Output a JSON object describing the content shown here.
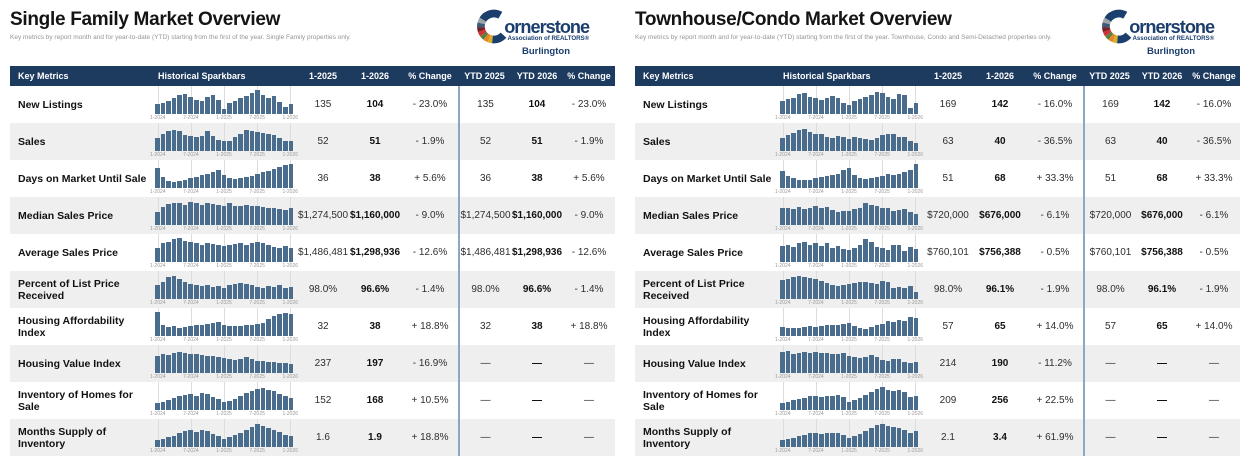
{
  "logo": {
    "name": "Cornerstone",
    "text_after_c": "ornerstone",
    "tagline": "Association of REALTORS®",
    "region": "Burlington"
  },
  "colors": {
    "header_bg": "#1d3a5f",
    "row_stripe": "#efefef",
    "bar_blue": "#4a6d8e",
    "divider_blue": "#8ba7c4",
    "logo_navy": "#1c3e6d"
  },
  "spark_axis": [
    "1-2024",
    "7-2024",
    "1-2025",
    "7-2025",
    "1-2026"
  ],
  "columns": [
    "Key Metrics",
    "Historical Sparkbars",
    "1-2025",
    "1-2026",
    "% Change",
    "YTD 2025",
    "YTD 2026",
    "% Change"
  ],
  "panels": [
    {
      "title": "Single Family Market Overview",
      "subtitle": "Key metrics by report month and for year-to-date (YTD) starting from the first of the year. Single Family properties only.",
      "rows": [
        {
          "metric": "New Listings",
          "m2025": "135",
          "m2026": "104",
          "mchange": "- 23.0%",
          "ytd2025": "135",
          "ytd2026": "104",
          "ytdchange": "- 23.0%",
          "spark": [
            40,
            46,
            55,
            65,
            78,
            85,
            70,
            60,
            55,
            72,
            80,
            58,
            20,
            45,
            55,
            65,
            75,
            88,
            100,
            80,
            68,
            74,
            52,
            30,
            40
          ]
        },
        {
          "metric": "Sales",
          "m2025": "52",
          "m2026": "51",
          "mchange": "- 1.9%",
          "ytd2025": "52",
          "ytd2026": "51",
          "ytdchange": "- 1.9%",
          "spark": [
            55,
            70,
            82,
            88,
            85,
            65,
            62,
            60,
            62,
            85,
            62,
            45,
            40,
            42,
            60,
            72,
            88,
            85,
            80,
            75,
            72,
            68,
            55,
            42,
            40
          ]
        },
        {
          "metric": "Days on Market Until Sale",
          "m2025": "36",
          "m2026": "38",
          "mchange": "+ 5.6%",
          "ytd2025": "36",
          "ytd2026": "38",
          "ytdchange": "+ 5.6%",
          "spark": [
            85,
            45,
            30,
            25,
            28,
            32,
            40,
            48,
            55,
            60,
            68,
            75,
            55,
            42,
            38,
            40,
            45,
            52,
            60,
            65,
            72,
            80,
            88,
            95,
            100
          ]
        },
        {
          "metric": "Median Sales Price",
          "m2025": "$1,274,500",
          "m2026": "$1,160,000",
          "mchange": "- 9.0%",
          "ytd2025": "$1,274,500",
          "ytd2026": "$1,160,000",
          "ytdchange": "- 9.0%",
          "spark": [
            55,
            75,
            88,
            92,
            90,
            85,
            95,
            90,
            85,
            92,
            88,
            85,
            80,
            90,
            78,
            80,
            82,
            80,
            78,
            75,
            72,
            70,
            68,
            62,
            70
          ]
        },
        {
          "metric": "Average Sales Price",
          "m2025": "$1,486,481",
          "m2026": "$1,298,936",
          "mchange": "- 12.6%",
          "ytd2025": "$1,486,481",
          "ytd2026": "$1,298,936",
          "ytdchange": "- 12.6%",
          "spark": [
            60,
            78,
            85,
            95,
            100,
            88,
            82,
            78,
            72,
            80,
            75,
            70,
            68,
            72,
            75,
            78,
            72,
            80,
            85,
            78,
            70,
            62,
            58,
            65,
            60
          ]
        },
        {
          "metric": "Percent of List Price Received",
          "m2025": "98.0%",
          "m2026": "96.6%",
          "mchange": "- 1.4%",
          "ytd2025": "98.0%",
          "ytd2026": "96.6%",
          "ytdchange": "- 1.4%",
          "spark": [
            60,
            72,
            90,
            95,
            85,
            70,
            62,
            58,
            55,
            58,
            52,
            55,
            48,
            58,
            62,
            68,
            62,
            58,
            52,
            48,
            55,
            50,
            58,
            45,
            52
          ]
        },
        {
          "metric": "Housing Affordability Index",
          "m2025": "32",
          "m2026": "38",
          "mchange": "+ 18.8%",
          "ytd2025": "32",
          "ytd2026": "38",
          "ytdchange": "+ 18.8%",
          "spark": [
            100,
            45,
            38,
            42,
            35,
            38,
            42,
            45,
            48,
            52,
            55,
            60,
            48,
            42,
            40,
            42,
            45,
            48,
            50,
            55,
            70,
            85,
            92,
            95,
            90
          ]
        },
        {
          "metric": "Housing Value Index",
          "m2025": "237",
          "m2026": "197",
          "mchange": "- 16.9%",
          "ytd2025": "—",
          "ytd2026": "—",
          "ytdchange": "—",
          "spark": [
            70,
            78,
            75,
            85,
            88,
            82,
            80,
            78,
            75,
            72,
            70,
            68,
            62,
            58,
            55,
            60,
            68,
            58,
            52,
            50,
            48,
            45,
            42,
            40,
            38
          ]
        },
        {
          "metric": "Inventory of Homes for Sale",
          "m2025": "152",
          "m2026": "168",
          "mchange": "+ 10.5%",
          "ytd2025": "—",
          "ytd2026": "—",
          "ytdchange": "—",
          "spark": [
            30,
            35,
            42,
            50,
            58,
            62,
            65,
            60,
            70,
            65,
            55,
            45,
            32,
            38,
            48,
            58,
            70,
            80,
            88,
            92,
            85,
            78,
            68,
            58,
            50
          ]
        },
        {
          "metric": "Months Supply of Inventory",
          "m2025": "1.6",
          "m2026": "1.9",
          "mchange": "+ 18.8%",
          "ytd2025": "—",
          "ytd2026": "—",
          "ytdchange": "—",
          "spark": [
            30,
            35,
            40,
            48,
            58,
            65,
            70,
            62,
            72,
            65,
            55,
            45,
            32,
            40,
            50,
            60,
            72,
            85,
            95,
            88,
            80,
            72,
            62,
            52,
            45
          ]
        }
      ]
    },
    {
      "title": "Townhouse/Condo Market Overview",
      "subtitle": "Key metrics by report month and for year-to-date (YTD) starting from the first of the year. Townhouse, Condo and Semi-Detached properties only.",
      "rows": [
        {
          "metric": "New Listings",
          "m2025": "169",
          "m2026": "142",
          "mchange": "- 16.0%",
          "ytd2025": "169",
          "ytd2026": "142",
          "ytdchange": "- 16.0%",
          "spark": [
            55,
            62,
            68,
            82,
            86,
            72,
            65,
            60,
            68,
            74,
            66,
            48,
            38,
            56,
            64,
            72,
            80,
            90,
            86,
            70,
            62,
            82,
            78,
            25,
            45
          ]
        },
        {
          "metric": "Sales",
          "m2025": "63",
          "m2026": "40",
          "mchange": "- 36.5%",
          "ytd2025": "63",
          "ytd2026": "40",
          "ytdchange": "- 36.5%",
          "spark": [
            55,
            65,
            75,
            88,
            92,
            78,
            70,
            72,
            60,
            55,
            62,
            58,
            52,
            60,
            55,
            50,
            48,
            56,
            65,
            70,
            72,
            60,
            58,
            40,
            35
          ]
        },
        {
          "metric": "Days on Market Until Sale",
          "m2025": "51",
          "m2026": "68",
          "mchange": "+ 33.3%",
          "ytd2025": "51",
          "ytd2026": "68",
          "ytdchange": "+ 33.3%",
          "spark": [
            70,
            50,
            40,
            35,
            32,
            35,
            42,
            48,
            52,
            55,
            60,
            75,
            85,
            55,
            40,
            38,
            42,
            48,
            52,
            58,
            55,
            60,
            68,
            75,
            100
          ]
        },
        {
          "metric": "Median Sales Price",
          "m2025": "$720,000",
          "m2026": "$676,000",
          "mchange": "- 6.1%",
          "ytd2025": "$720,000",
          "ytd2026": "$676,000",
          "ytdchange": "- 6.1%",
          "spark": [
            70,
            72,
            68,
            75,
            65,
            72,
            80,
            70,
            75,
            62,
            55,
            60,
            58,
            68,
            72,
            92,
            85,
            78,
            70,
            72,
            58,
            62,
            65,
            55,
            48
          ]
        },
        {
          "metric": "Average Sales Price",
          "m2025": "$760,101",
          "m2026": "$756,388",
          "mchange": "- 0.5%",
          "ytd2025": "$760,101",
          "ytd2026": "$756,388",
          "ytdchange": "- 0.5%",
          "spark": [
            65,
            72,
            62,
            80,
            82,
            72,
            78,
            68,
            78,
            58,
            65,
            55,
            52,
            60,
            70,
            95,
            85,
            62,
            58,
            52,
            70,
            72,
            45,
            62,
            55
          ]
        },
        {
          "metric": "Percent of List Price Received",
          "m2025": "98.0%",
          "m2026": "96.1%",
          "mchange": "- 1.9%",
          "ytd2025": "98.0%",
          "ytd2026": "96.1%",
          "ytdchange": "- 1.9%",
          "spark": [
            80,
            85,
            90,
            95,
            92,
            88,
            82,
            75,
            68,
            60,
            55,
            58,
            62,
            65,
            70,
            72,
            68,
            62,
            75,
            70,
            45,
            52,
            48,
            55,
            30
          ]
        },
        {
          "metric": "Housing Affordability Index",
          "m2025": "57",
          "m2026": "65",
          "mchange": "+ 14.0%",
          "ytd2025": "57",
          "ytd2026": "65",
          "ytdchange": "+ 14.0%",
          "spark": [
            38,
            35,
            32,
            35,
            38,
            42,
            36,
            40,
            44,
            46,
            48,
            52,
            55,
            42,
            35,
            30,
            38,
            44,
            50,
            62,
            58,
            66,
            62,
            80,
            74
          ]
        },
        {
          "metric": "Housing Value Index",
          "m2025": "214",
          "m2026": "190",
          "mchange": "- 11.2%",
          "ytd2025": "—",
          "ytd2026": "—",
          "ytdchange": "—",
          "spark": [
            88,
            92,
            80,
            85,
            88,
            85,
            88,
            82,
            85,
            80,
            78,
            82,
            72,
            65,
            62,
            68,
            75,
            65,
            55,
            52,
            60,
            58,
            45,
            40,
            48
          ]
        },
        {
          "metric": "Inventory of Homes for Sale",
          "m2025": "209",
          "m2026": "256",
          "mchange": "+ 22.5%",
          "ytd2025": "—",
          "ytd2026": "—",
          "ytdchange": "—",
          "spark": [
            30,
            35,
            40,
            45,
            52,
            58,
            60,
            55,
            58,
            60,
            62,
            55,
            35,
            42,
            52,
            62,
            75,
            88,
            95,
            85,
            78,
            82,
            75,
            55,
            60
          ]
        },
        {
          "metric": "Months Supply of Inventory",
          "m2025": "2.1",
          "m2026": "3.4",
          "mchange": "+ 61.9%",
          "ytd2025": "—",
          "ytd2026": "—",
          "ytdchange": "—",
          "spark": [
            28,
            32,
            38,
            44,
            52,
            58,
            60,
            55,
            58,
            60,
            58,
            52,
            38,
            45,
            55,
            65,
            78,
            90,
            95,
            88,
            82,
            78,
            72,
            58,
            65
          ]
        }
      ]
    }
  ]
}
